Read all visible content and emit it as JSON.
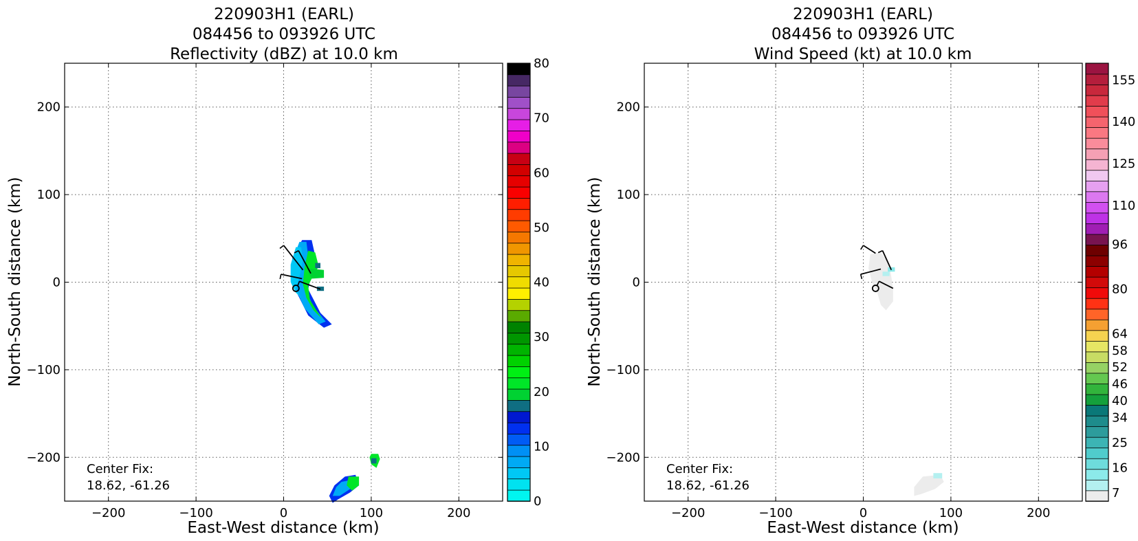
{
  "chart_data": [
    {
      "type": "heatmap",
      "title_lines": [
        "220903H1 (EARL)",
        "084456 to 093926 UTC",
        "Reflectivity (dBZ) at 10.0 km"
      ],
      "xlabel": "East-West distance (km)",
      "ylabel": "North-South distance (km)",
      "xlim": [
        -250,
        250
      ],
      "ylim": [
        -250,
        250
      ],
      "xticks": [
        -200,
        -100,
        0,
        100,
        200
      ],
      "yticks": [
        -200,
        -100,
        0,
        100,
        200
      ],
      "xtick_labels": [
        "−200",
        "−100",
        "0",
        "100",
        "200"
      ],
      "ytick_labels": [
        "−200",
        "−100",
        "0",
        "100",
        "200"
      ],
      "grid": true,
      "annotation": [
        "Center Fix:",
        "18.62, -61.26"
      ],
      "colorbar": {
        "min": 0,
        "max": 80,
        "tick_values": [
          0,
          10,
          20,
          30,
          40,
          50,
          60,
          70,
          80
        ],
        "tick_labels": [
          "0",
          "10",
          "20",
          "30",
          "40",
          "50",
          "60",
          "70",
          "80"
        ],
        "colors": [
          "#00f5f0",
          "#00e2f0",
          "#00c8f5",
          "#00aaf5",
          "#0090f5",
          "#005cf5",
          "#0030f0",
          "#0018d0",
          "#0f6e82",
          "#00d232",
          "#00e628",
          "#00f014",
          "#00d200",
          "#00b400",
          "#009600",
          "#008200",
          "#5aaa00",
          "#b4d200",
          "#fff000",
          "#f0dc00",
          "#e6c800",
          "#f0b400",
          "#f09600",
          "#f57800",
          "#ff5a00",
          "#ff3c00",
          "#ff1e00",
          "#fa0000",
          "#e60000",
          "#d20000",
          "#c80014",
          "#dc0082",
          "#f000c8",
          "#e61ee6",
          "#c846dc",
          "#a050c8",
          "#7846a0",
          "#462864",
          "#000000"
        ]
      },
      "vectors": [
        {
          "x": 0,
          "y": 42,
          "u": 22,
          "v": -28
        },
        {
          "x": 17,
          "y": 36,
          "u": 14,
          "v": -26
        },
        {
          "x": -3,
          "y": 9,
          "u": 24,
          "v": -5
        },
        {
          "x": 18,
          "y": 1,
          "u": 24,
          "v": -9
        }
      ],
      "center": {
        "x": 14,
        "y": -7
      },
      "regions": [
        {
          "color": "#0030f0",
          "points": [
            [
              21,
              48
            ],
            [
              32,
              48
            ],
            [
              36,
              30
            ],
            [
              32,
              10
            ],
            [
              28,
              -8
            ],
            [
              42,
              -35
            ],
            [
              55,
              -48
            ],
            [
              46,
              -52
            ],
            [
              28,
              -38
            ],
            [
              15,
              -12
            ],
            [
              10,
              8
            ],
            [
              10,
              28
            ]
          ]
        },
        {
          "color": "#00aaf5",
          "points": [
            [
              18,
              46
            ],
            [
              26,
              46
            ],
            [
              28,
              30
            ],
            [
              26,
              10
            ],
            [
              24,
              -5
            ],
            [
              34,
              -28
            ],
            [
              48,
              -45
            ],
            [
              40,
              -48
            ],
            [
              24,
              -30
            ],
            [
              14,
              -8
            ],
            [
              10,
              12
            ],
            [
              12,
              30
            ]
          ]
        },
        {
          "color": "#00c8f5",
          "points": [
            [
              14,
              40
            ],
            [
              20,
              40
            ],
            [
              22,
              25
            ],
            [
              18,
              6
            ],
            [
              14,
              -8
            ],
            [
              20,
              -18
            ],
            [
              14,
              -12
            ],
            [
              8,
              0
            ],
            [
              8,
              20
            ]
          ]
        },
        {
          "color": "#00e628",
          "points": [
            [
              28,
              36
            ],
            [
              36,
              34
            ],
            [
              40,
              18
            ],
            [
              34,
              8
            ],
            [
              28,
              -4
            ],
            [
              30,
              -20
            ],
            [
              38,
              -33
            ],
            [
              44,
              -42
            ],
            [
              34,
              -32
            ],
            [
              26,
              -18
            ],
            [
              22,
              -2
            ],
            [
              24,
              18
            ]
          ]
        },
        {
          "color": "#00d232",
          "points": [
            [
              26,
              16
            ],
            [
              46,
              14
            ],
            [
              46,
              5
            ],
            [
              32,
              4
            ]
          ]
        },
        {
          "color": "#0f6e82",
          "points": [
            [
              36,
              22
            ],
            [
              42,
              22
            ],
            [
              42,
              16
            ],
            [
              36,
              16
            ]
          ]
        },
        {
          "color": "#0f6e82",
          "points": [
            [
              38,
              -5
            ],
            [
              46,
              -5
            ],
            [
              46,
              -10
            ],
            [
              38,
              -10
            ]
          ]
        },
        {
          "color": "#00e628",
          "points": [
            [
              100,
              -196
            ],
            [
              108,
              -196
            ],
            [
              110,
              -202
            ],
            [
              106,
              -212
            ],
            [
              100,
              -208
            ],
            [
              98,
              -200
            ]
          ]
        },
        {
          "color": "#0f6e82",
          "points": [
            [
              100,
              -201
            ],
            [
              106,
              -201
            ],
            [
              106,
              -207
            ],
            [
              100,
              -207
            ]
          ]
        },
        {
          "color": "#0030f0",
          "points": [
            [
              70,
              -222
            ],
            [
              82,
              -220
            ],
            [
              86,
              -232
            ],
            [
              76,
              -240
            ],
            [
              62,
              -248
            ],
            [
              56,
              -252
            ],
            [
              52,
              -244
            ],
            [
              58,
              -232
            ]
          ]
        },
        {
          "color": "#00aaf5",
          "points": [
            [
              66,
              -228
            ],
            [
              76,
              -226
            ],
            [
              76,
              -236
            ],
            [
              64,
              -244
            ],
            [
              56,
              -244
            ],
            [
              60,
              -234
            ]
          ]
        },
        {
          "color": "#00e628",
          "points": [
            [
              74,
              -222
            ],
            [
              86,
              -222
            ],
            [
              86,
              -232
            ],
            [
              78,
              -238
            ],
            [
              72,
              -232
            ]
          ]
        }
      ]
    },
    {
      "type": "heatmap",
      "title_lines": [
        "220903H1 (EARL)",
        "084456 to 093926 UTC",
        "Wind Speed (kt) at 10.0 km"
      ],
      "xlabel": "East-West distance (km)",
      "ylabel": "North-South distance (km)",
      "xlim": [
        -250,
        250
      ],
      "ylim": [
        -250,
        250
      ],
      "xticks": [
        -200,
        -100,
        0,
        100,
        200
      ],
      "yticks": [
        -200,
        -100,
        0,
        100,
        200
      ],
      "xtick_labels": [
        "−200",
        "−100",
        "0",
        "100",
        "200"
      ],
      "ytick_labels": [
        "−200",
        "−100",
        "0",
        "100",
        "200"
      ],
      "grid": true,
      "annotation": [
        "Center Fix:",
        "18.62, -61.26"
      ],
      "colorbar": {
        "min": 4,
        "max": 161,
        "tick_values": [
          7,
          16,
          25,
          34,
          40,
          46,
          52,
          58,
          64,
          80,
          96,
          110,
          125,
          140,
          155
        ],
        "tick_labels": [
          "7",
          "16",
          "25",
          "34",
          "40",
          "46",
          "52",
          "58",
          "64",
          "80",
          "96",
          "110",
          "125",
          "140",
          "155"
        ],
        "colors": [
          "#ececec",
          "#b4f0f0",
          "#8ceaea",
          "#6edcdc",
          "#50cccc",
          "#3cb4b4",
          "#2d9c9c",
          "#1e8c8c",
          "#0a7878",
          "#14a03c",
          "#32b43c",
          "#64c850",
          "#96d264",
          "#c8dc64",
          "#e6e664",
          "#f5d250",
          "#f5a032",
          "#ff6428",
          "#ff3214",
          "#f00a0a",
          "#d20a0a",
          "#b40000",
          "#8c0000",
          "#6e0000",
          "#781450",
          "#a01eb4",
          "#be32e6",
          "#d250f0",
          "#dc78f0",
          "#e6a0f0",
          "#f0c8f0",
          "#f5b4d2",
          "#f5a0b4",
          "#fa8c9b",
          "#fa7882",
          "#f5646e",
          "#f0505a",
          "#e13c4b",
          "#c8283c",
          "#b41e3c",
          "#9b1441"
        ]
      },
      "vectors": [
        {
          "x": 0,
          "y": 42,
          "u": 14,
          "v": -9
        },
        {
          "x": 22,
          "y": 36,
          "u": 10,
          "v": -22
        },
        {
          "x": -3,
          "y": 9,
          "u": 23,
          "v": 6
        },
        {
          "x": 18,
          "y": 1,
          "u": 16,
          "v": -8
        }
      ],
      "center": {
        "x": 14,
        "y": -7
      },
      "regions": [
        {
          "color": "#ececec",
          "points": [
            [
              8,
              32
            ],
            [
              20,
              34
            ],
            [
              26,
              26
            ],
            [
              30,
              18
            ],
            [
              32,
              6
            ],
            [
              34,
              -8
            ],
            [
              34,
              -22
            ],
            [
              26,
              -32
            ],
            [
              20,
              -26
            ],
            [
              16,
              -12
            ],
            [
              10,
              0
            ],
            [
              6,
              16
            ]
          ]
        },
        {
          "color": "#ececec",
          "points": [
            [
              68,
              -222
            ],
            [
              88,
              -220
            ],
            [
              92,
              -228
            ],
            [
              82,
              -236
            ],
            [
              66,
              -242
            ],
            [
              58,
              -244
            ],
            [
              58,
              -234
            ]
          ]
        },
        {
          "color": "#8ceaea",
          "points": [
            [
              28,
              17
            ],
            [
              36,
              17
            ],
            [
              36,
              12
            ],
            [
              28,
              12
            ]
          ]
        },
        {
          "color": "#b4f0f0",
          "points": [
            [
              22,
              12
            ],
            [
              30,
              12
            ],
            [
              30,
              7
            ],
            [
              22,
              7
            ]
          ]
        },
        {
          "color": "#b4f0f0",
          "points": [
            [
              80,
              -218
            ],
            [
              90,
              -218
            ],
            [
              90,
              -224
            ],
            [
              80,
              -224
            ]
          ]
        }
      ]
    }
  ]
}
